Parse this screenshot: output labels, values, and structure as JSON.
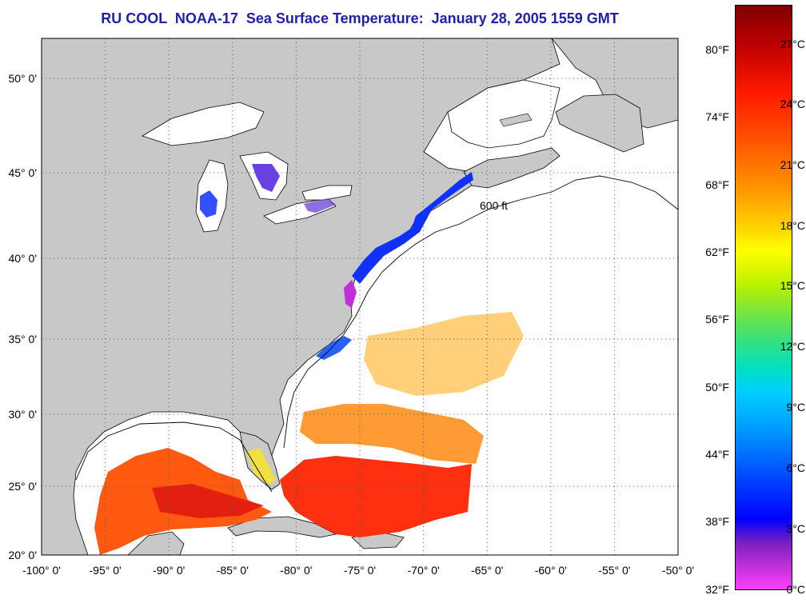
{
  "title": "RU COOL  NOAA-17  Sea Surface Temperature:  January 28, 2005 1559 GMT",
  "lat_ticks": [
    {
      "lat": 50,
      "label": "50° 0'"
    },
    {
      "lat": 45,
      "label": "45° 0'"
    },
    {
      "lat": 40,
      "label": "40° 0'"
    },
    {
      "lat": 35,
      "label": "35° 0'"
    },
    {
      "lat": 30,
      "label": "30° 0'"
    },
    {
      "lat": 25,
      "label": "25° 0'"
    },
    {
      "lat": 20,
      "label": "20° 0'"
    }
  ],
  "lon_ticks": [
    {
      "lon": -100,
      "label": "-100° 0'"
    },
    {
      "lon": -95,
      "label": "-95° 0'"
    },
    {
      "lon": -90,
      "label": "-90° 0'"
    },
    {
      "lon": -85,
      "label": "-85° 0'"
    },
    {
      "lon": -80,
      "label": "-80° 0'"
    },
    {
      "lon": -75,
      "label": "-75° 0'"
    },
    {
      "lon": -70,
      "label": "-70° 0'"
    },
    {
      "lon": -65,
      "label": "-65° 0'"
    },
    {
      "lon": -60,
      "label": "-60° 0'"
    },
    {
      "lon": -55,
      "label": "-55° 0'"
    },
    {
      "lon": -50,
      "label": "-50° 0'"
    }
  ],
  "isobath_label": "600 ft",
  "colorbar": {
    "fahrenheit": [
      "80°F",
      "74°F",
      "68°F",
      "62°F",
      "56°F",
      "50°F",
      "44°F",
      "38°F",
      "32°F"
    ],
    "celsius": [
      "27°C",
      "24°C",
      "21°C",
      "18°C",
      "15°C",
      "12°C",
      "9°C",
      "6°C",
      "3°C",
      "0°C"
    ]
  },
  "colors": {
    "land": "#c8c8c8",
    "ocean": "#ffffff",
    "title": "#1f1fa8",
    "cold": "#1020ff",
    "warm": "#ff4000",
    "hot": "#e01010"
  }
}
